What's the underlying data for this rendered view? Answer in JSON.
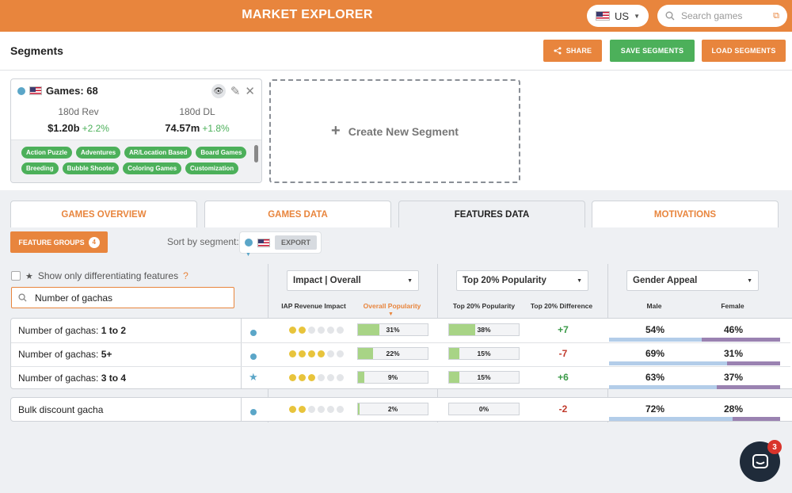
{
  "app": {
    "title": "MARKET EXPLORER"
  },
  "country": {
    "label": "US"
  },
  "search": {
    "placeholder": "Search games"
  },
  "header": {
    "title": "Segments",
    "share_label": "SHARE",
    "save_label": "SAVE SEGMENTS",
    "load_label": "LOAD SEGMENTS"
  },
  "segment": {
    "title": "Games: 68",
    "rev_label": "180d Rev",
    "rev_value": "$1.20b",
    "rev_change": "+2.2%",
    "dl_label": "180d DL",
    "dl_value": "74.57m",
    "dl_change": "+1.8%",
    "tags": [
      "Action Puzzle",
      "Adventures",
      "AR/Location Based",
      "Board Games",
      "Breeding",
      "Bubble Shooter",
      "Coloring Games",
      "Customization"
    ]
  },
  "create_segment": {
    "label": "Create New Segment"
  },
  "tabs": [
    {
      "label": "GAMES OVERVIEW"
    },
    {
      "label": "GAMES DATA"
    },
    {
      "label": "FEATURES DATA"
    },
    {
      "label": "MOTIVATIONS"
    }
  ],
  "toolbar": {
    "feature_groups_label": "FEATURE GROUPS",
    "feature_groups_count": "4",
    "sort_label": "Sort by segment:",
    "export_label": "EXPORT"
  },
  "filters": {
    "differentiating_label": "Show only differentiating features",
    "help": "?",
    "search_value": "Number of gachas"
  },
  "columns": {
    "impact_dropdown": "Impact | Overall",
    "popularity_dropdown": "Top 20% Popularity",
    "gender_dropdown": "Gender Appeal",
    "iap": "IAP Revenue Impact",
    "overall_pop": "Overall Popularity",
    "top_pop": "Top 20% Popularity",
    "top_diff": "Top 20% Difference",
    "male": "Male",
    "female": "Female"
  },
  "rows": [
    {
      "name": "Number of gachas: ",
      "bold": "1 to 2",
      "indicator": "dot",
      "impact": 2,
      "overall_pop": 31,
      "overall_pop_text": "31%",
      "top_pop": 38,
      "top_pop_text": "38%",
      "diff": "+7",
      "male": "54%",
      "female": "46%",
      "male_share": 54
    },
    {
      "name": "Number of gachas: ",
      "bold": "5+",
      "indicator": "dot",
      "impact": 4,
      "overall_pop": 22,
      "overall_pop_text": "22%",
      "top_pop": 15,
      "top_pop_text": "15%",
      "diff": "-7",
      "male": "69%",
      "female": "31%",
      "male_share": 69
    },
    {
      "name": "Number of gachas: ",
      "bold": "3 to 4",
      "indicator": "star",
      "impact": 3,
      "overall_pop": 9,
      "overall_pop_text": "9%",
      "top_pop": 15,
      "top_pop_text": "15%",
      "diff": "+6",
      "male": "63%",
      "female": "37%",
      "male_share": 63
    },
    {
      "name": "Bulk discount gacha",
      "bold": "",
      "indicator": "dot",
      "impact": 2,
      "overall_pop": 2,
      "overall_pop_text": "2%",
      "top_pop": 0,
      "top_pop_text": "0%",
      "diff": "-2",
      "male": "72%",
      "female": "28%",
      "male_share": 72
    }
  ],
  "chat": {
    "badge": "3"
  },
  "colors": {
    "accent": "#e8853d",
    "green": "#4cb05a",
    "segment": "#5ba6c8"
  }
}
